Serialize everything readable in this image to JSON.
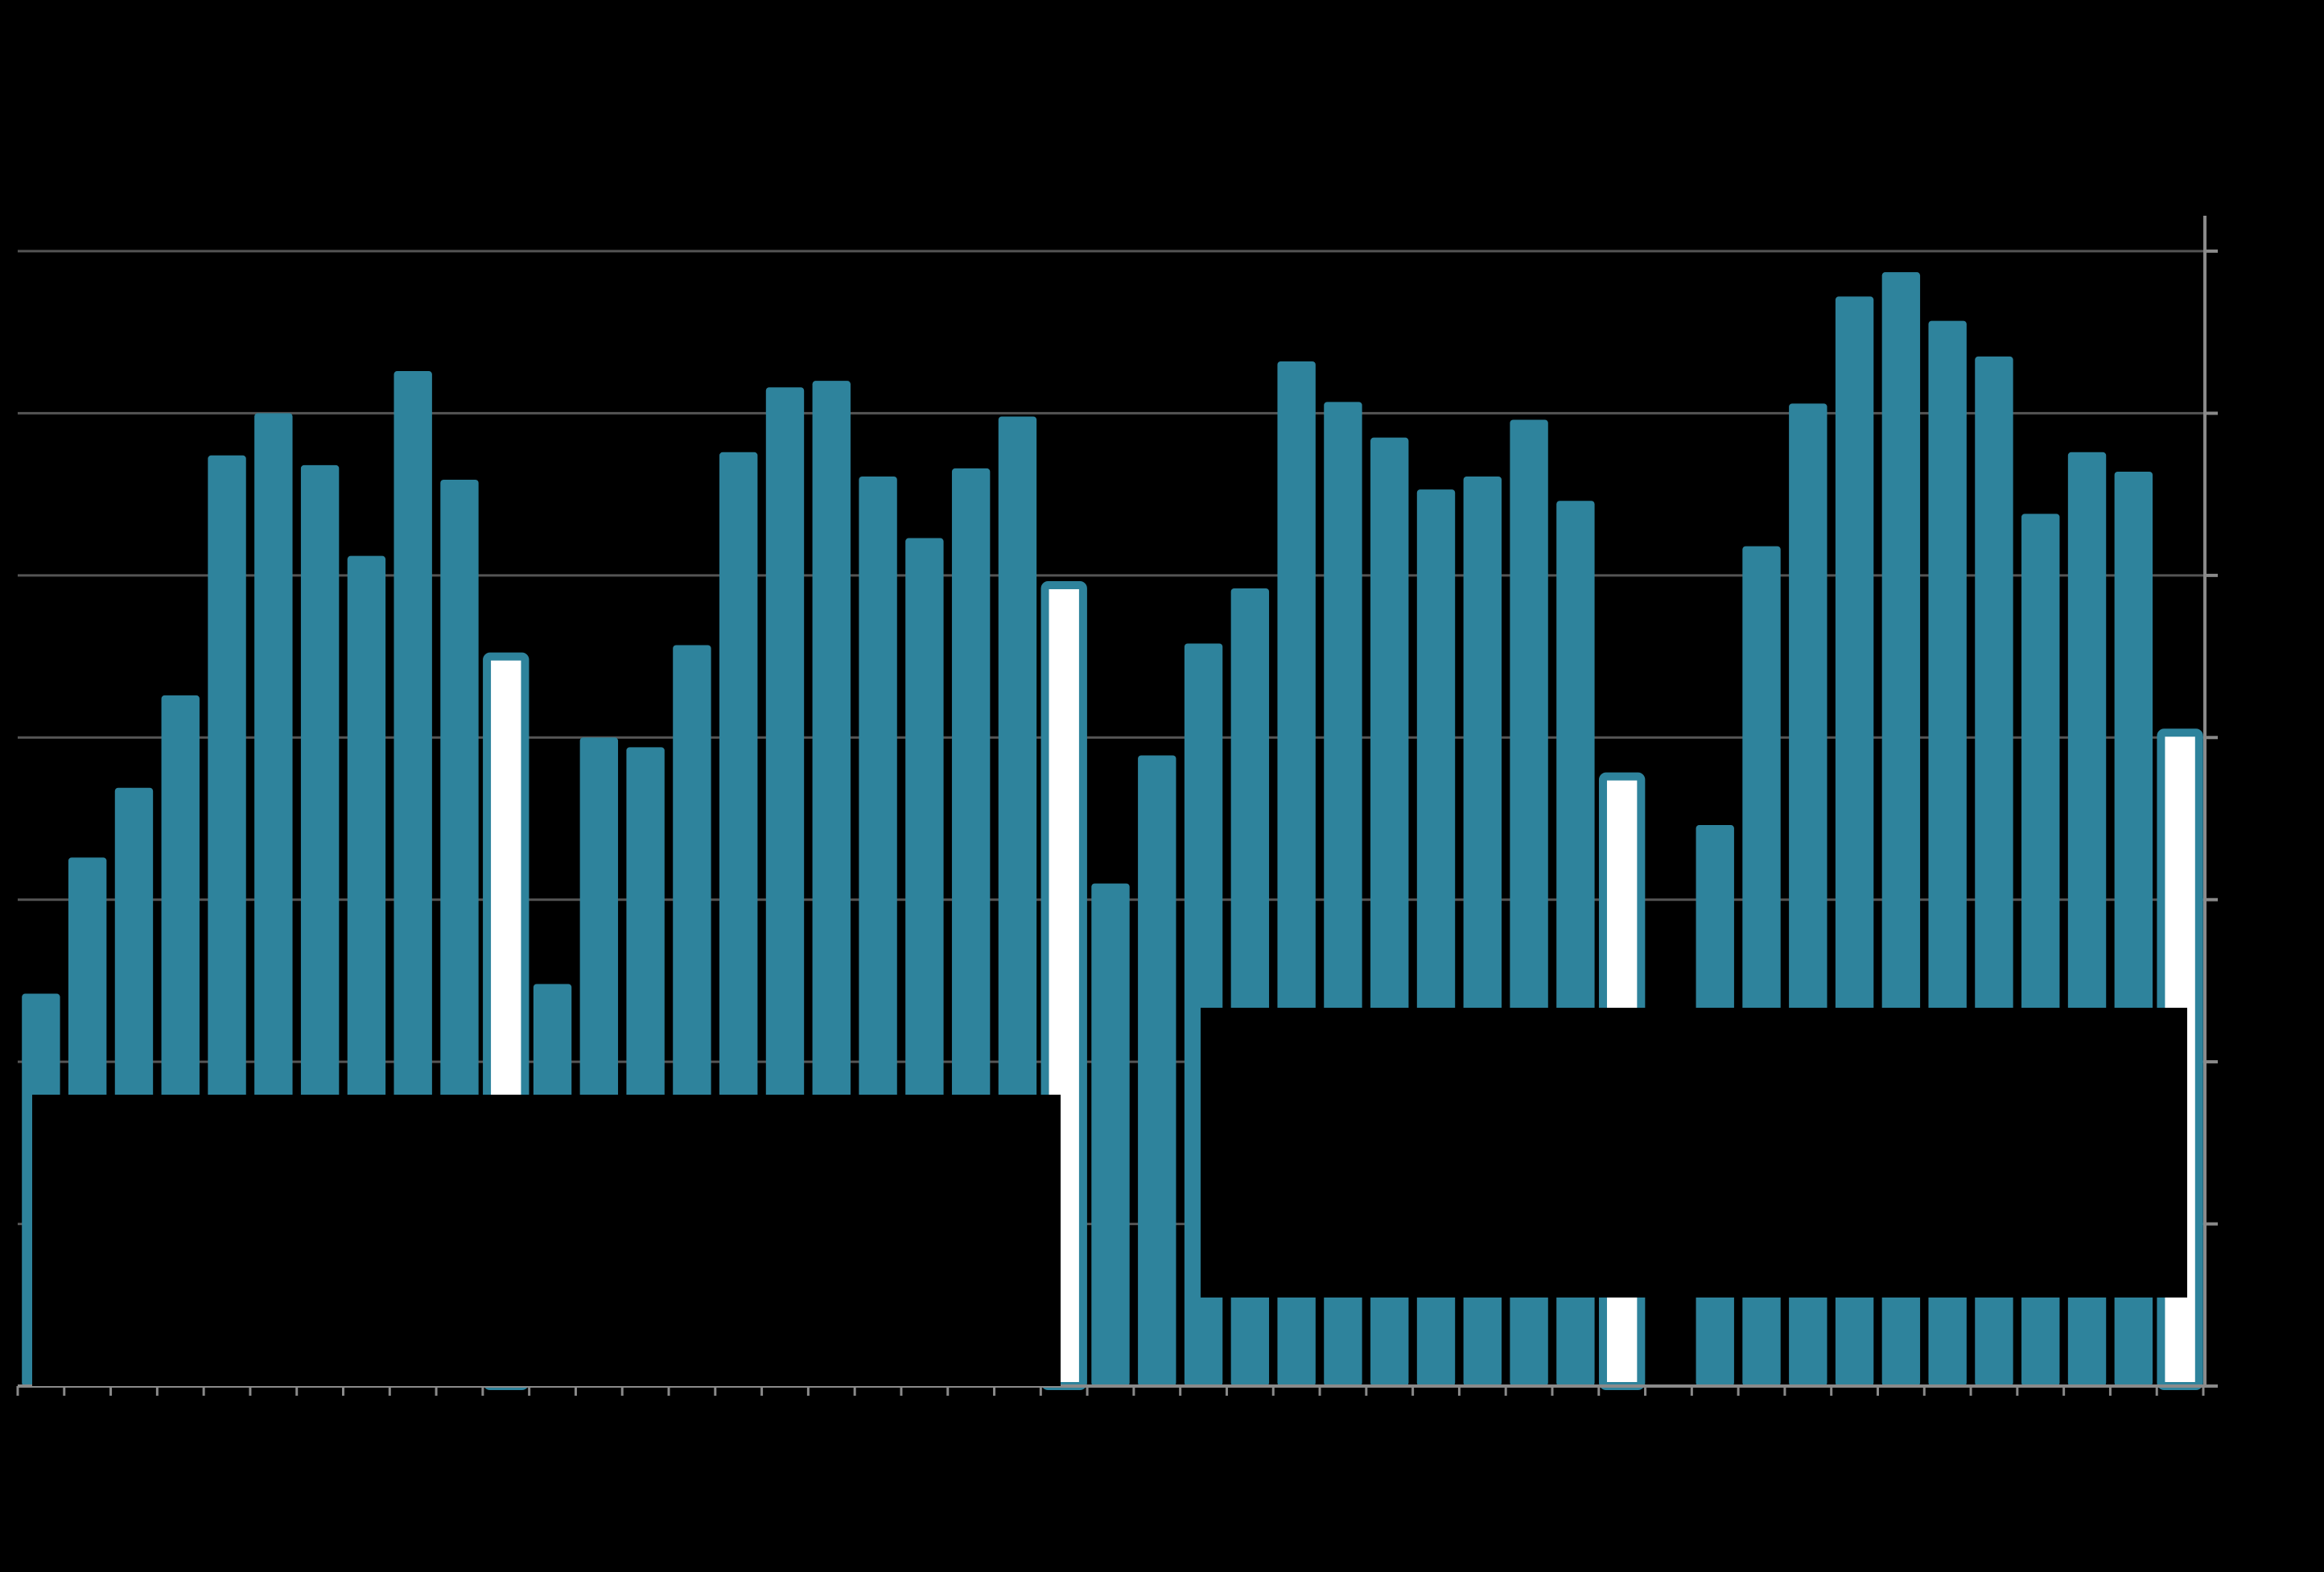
{
  "colors": {
    "background": "#000000",
    "bar_fill": "#2e839c",
    "bar_outline": "#2e839c",
    "highlight_fill": "#ffffff",
    "gridline": "#555555",
    "axis": "#8a8a8a",
    "overlay": "#000000"
  },
  "chart_data": {
    "type": "bar",
    "title": "",
    "xlabel": "",
    "ylabel": "",
    "ylim": [
      0,
      70
    ],
    "y_ticks": [
      0,
      10,
      20,
      30,
      40,
      50,
      60,
      70
    ],
    "grid": true,
    "tick_labels_visible": false,
    "values": [
      24.2,
      32.6,
      36.9,
      42.6,
      57.4,
      60.0,
      56.8,
      51.2,
      62.6,
      55.9,
      45.0,
      24.8,
      40.0,
      39.4,
      45.7,
      57.6,
      61.6,
      62.0,
      56.1,
      52.3,
      56.6,
      59.8,
      49.4,
      31.0,
      38.9,
      45.8,
      49.2,
      63.2,
      60.7,
      58.5,
      55.3,
      56.1,
      59.6,
      54.6,
      37.6,
      null,
      34.6,
      51.8,
      60.6,
      67.2,
      68.7,
      65.7,
      63.5,
      53.8,
      57.6,
      56.4,
      40.3
    ],
    "highlighted_indices": [
      10,
      22,
      34,
      46
    ],
    "series": [
      {
        "highlighted_style": "outlined",
        "regular_style": "filled"
      }
    ],
    "overlays": [
      "left-box",
      "right-box"
    ]
  }
}
